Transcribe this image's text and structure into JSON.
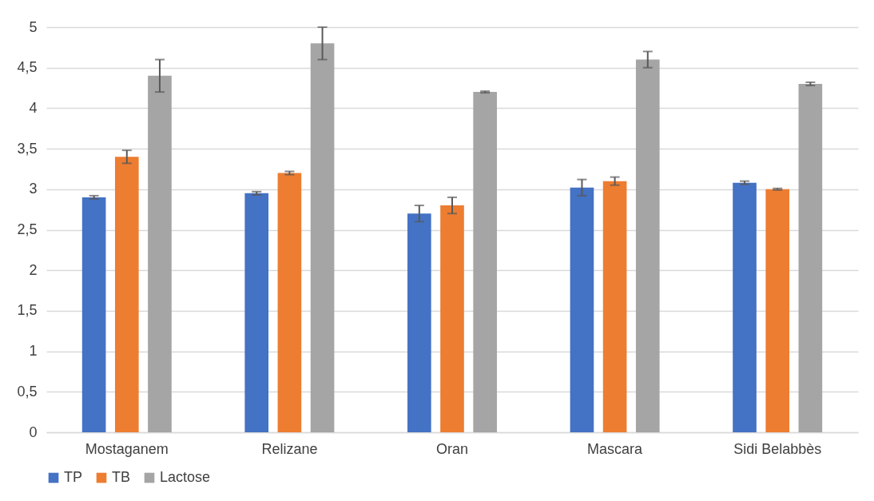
{
  "chart_data": {
    "type": "bar",
    "categories": [
      "Mostaganem",
      "Relizane",
      "Oran",
      "Mascara",
      "Sidi Belabbès"
    ],
    "series": [
      {
        "name": "TP",
        "color": "#4472c4",
        "values": [
          2.9,
          2.95,
          2.7,
          3.02,
          3.08
        ],
        "errors": [
          0.02,
          0.02,
          0.1,
          0.1,
          0.02
        ]
      },
      {
        "name": "TB",
        "color": "#ed7d31",
        "values": [
          3.4,
          3.2,
          2.8,
          3.1,
          3.0
        ],
        "errors": [
          0.08,
          0.02,
          0.1,
          0.05,
          0.01
        ]
      },
      {
        "name": "Lactose",
        "color": "#a5a5a5",
        "values": [
          4.4,
          4.8,
          4.2,
          4.6,
          4.3
        ],
        "errors": [
          0.2,
          0.2,
          0.01,
          0.1,
          0.02
        ]
      }
    ],
    "ylim": [
      0,
      5
    ],
    "yticks": [
      0,
      {
        "value": 0.5,
        "label": "0,5"
      },
      1,
      {
        "value": 1.5,
        "label": "1,5"
      },
      2,
      {
        "value": 2.5,
        "label": "2,5"
      },
      3,
      {
        "value": 3.5,
        "label": "3,5"
      },
      4,
      {
        "value": 4.5,
        "label": "4,5"
      },
      5
    ],
    "grid": "y",
    "legend": "bottom"
  }
}
